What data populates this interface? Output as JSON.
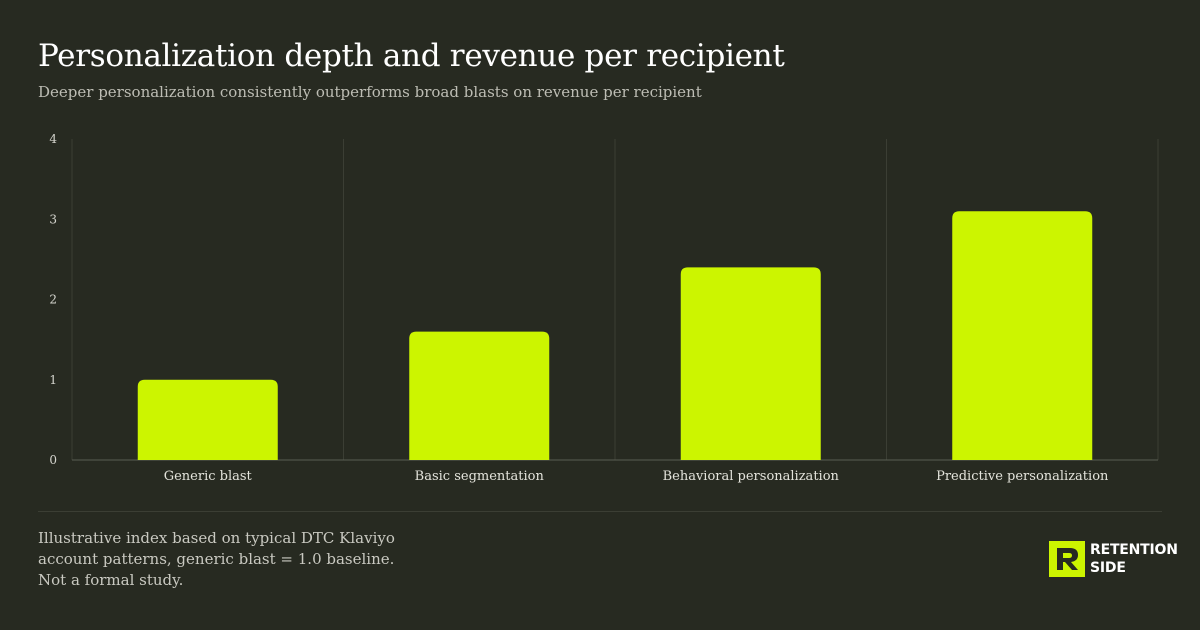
{
  "header": {
    "title": "Personalization depth and revenue per recipient",
    "subtitle": "Deeper personalization consistently outperforms broad blasts on revenue per recipient"
  },
  "chart_data": {
    "type": "bar",
    "categories": [
      "Generic blast",
      "Basic segmentation",
      "Behavioral personalization",
      "Predictive personalization"
    ],
    "values": [
      1.0,
      1.6,
      2.4,
      3.1
    ],
    "ylim": [
      0,
      4
    ],
    "yticks": [
      0,
      1,
      2,
      3,
      4
    ],
    "title": "Personalization depth and revenue per recipient",
    "subtitle": "Deeper personalization consistently outperforms broad blasts on revenue per recipient",
    "grid": "vertical separators between categories",
    "bar_color": "#ccf500"
  },
  "footer": {
    "note": "Illustrative index based on typical DTC Klaviyo account patterns, generic blast = 1.0 baseline. Not a formal study.",
    "logo_line1": "RETENTION",
    "logo_line2": "SIDE"
  },
  "colors": {
    "background": "#272a21",
    "accent": "#ccf500",
    "grid": "#3b3e34"
  }
}
